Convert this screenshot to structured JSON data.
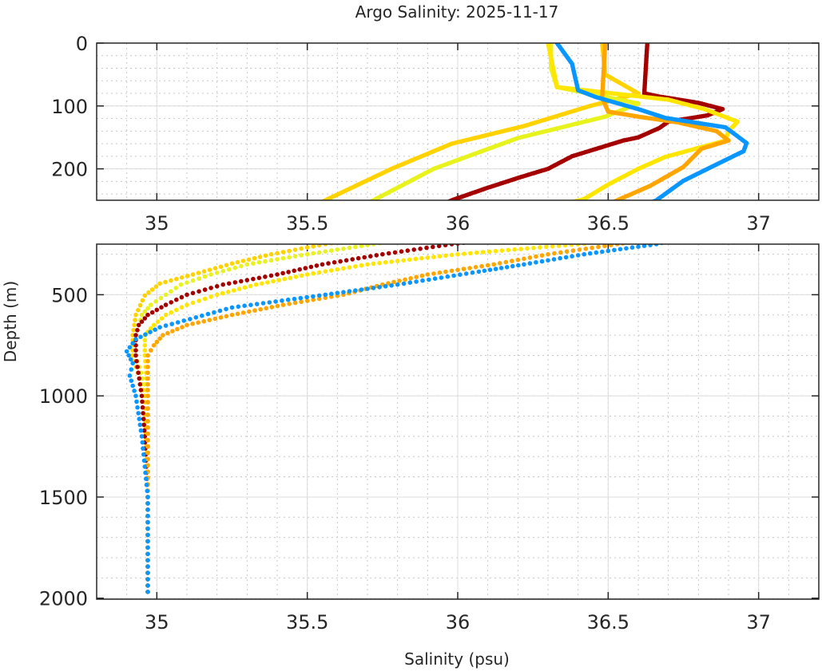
{
  "chart_data": {
    "type": "scatter",
    "title": "Argo Salinity: 2025-11-17",
    "xlabel": "Salinity (psu)",
    "ylabel": "Depth (m)",
    "grid": true,
    "minor_grid": true,
    "panels": [
      {
        "xlim": [
          34.8,
          37.2
        ],
        "ylim": [
          0,
          250
        ],
        "xticks": [
          "35",
          "35.5",
          "36",
          "36.5",
          "37"
        ],
        "xtick_values": [
          35,
          35.5,
          36,
          36.5,
          37
        ],
        "yticks": [
          "0",
          "100",
          "200"
        ],
        "ytick_values": [
          0,
          100,
          200
        ],
        "minor_x_step": 0.1,
        "minor_y_step": 20
      },
      {
        "xlim": [
          34.8,
          37.2
        ],
        "ylim": [
          250,
          2005
        ],
        "xticks": [
          "35",
          "35.5",
          "36",
          "36.5",
          "37"
        ],
        "xtick_values": [
          35,
          35.5,
          36,
          36.5,
          37
        ],
        "yticks": [
          "500",
          "1000",
          "1500",
          "2000"
        ],
        "ytick_values": [
          500,
          1000,
          1500,
          2000
        ],
        "minor_x_step": 0.1,
        "minor_y_step": 100
      }
    ],
    "series": [
      {
        "color": "#FFD200",
        "depth": [
          0,
          50,
          80,
          100,
          132,
          160,
          200,
          250,
          300,
          346,
          400,
          445,
          504,
          600,
          700,
          800,
          1000,
          1500,
          2000
        ],
        "salinity": [
          36.48,
          36.49,
          36.6,
          36.44,
          36.22,
          35.98,
          35.78,
          35.56,
          35.38,
          35.25,
          35.12,
          35.01,
          34.96,
          34.93,
          34.92,
          34.92,
          34.96,
          34.97,
          34.97
        ]
      },
      {
        "color": "#E8F21C",
        "depth": [
          0,
          40,
          70,
          96,
          117,
          151,
          200,
          250,
          300,
          350,
          400,
          450,
          500,
          550,
          600,
          700,
          800,
          1000,
          2000
        ],
        "salinity": [
          36.31,
          36.31,
          36.33,
          36.6,
          36.49,
          36.2,
          35.92,
          35.72,
          35.5,
          35.3,
          35.18,
          35.08,
          35.03,
          34.98,
          34.95,
          34.93,
          34.93,
          34.97,
          34.97
        ]
      },
      {
        "color": "#A50000",
        "depth": [
          0,
          80,
          85,
          95,
          105,
          115,
          125,
          135,
          150,
          155,
          180,
          200,
          213,
          230,
          250,
          300,
          350,
          400,
          450,
          500,
          550,
          600,
          650,
          700,
          800,
          1000,
          1200,
          1500,
          2000
        ],
        "salinity": [
          36.63,
          36.62,
          36.67,
          36.8,
          36.88,
          36.83,
          36.7,
          36.67,
          36.6,
          36.55,
          36.38,
          36.3,
          36.21,
          36.1,
          35.98,
          35.75,
          35.55,
          35.4,
          35.22,
          35.1,
          35.03,
          34.97,
          34.94,
          34.93,
          34.93,
          34.95,
          34.96,
          34.97,
          34.97
        ]
      },
      {
        "color": "#FFE600",
        "depth": [
          0,
          70,
          90,
          105,
          125,
          140,
          155,
          181,
          200,
          225,
          248,
          300,
          350,
          400,
          450,
          500,
          550,
          600,
          650,
          700,
          800,
          1000,
          2000
        ],
        "salinity": [
          36.3,
          36.33,
          36.7,
          36.82,
          36.93,
          36.9,
          36.89,
          36.69,
          36.6,
          36.5,
          36.42,
          36.0,
          35.7,
          35.5,
          35.33,
          35.2,
          35.1,
          35.03,
          34.99,
          34.96,
          34.96,
          34.97,
          34.97
        ]
      },
      {
        "color": "#FFA500",
        "depth": [
          0,
          87,
          109,
          117,
          126,
          140,
          155,
          168,
          197,
          227,
          250,
          300,
          350,
          400,
          450,
          500,
          550,
          600,
          650,
          700,
          750,
          800,
          1000,
          2000
        ],
        "salinity": [
          36.49,
          36.48,
          36.5,
          36.6,
          36.73,
          36.86,
          36.9,
          36.81,
          36.75,
          36.64,
          36.53,
          36.3,
          36.12,
          35.9,
          35.75,
          35.62,
          35.42,
          35.25,
          35.1,
          35.02,
          34.99,
          34.97,
          34.97,
          34.97
        ]
      },
      {
        "color": "#0A96FF",
        "depth": [
          0,
          33,
          75,
          86,
          105,
          119,
          134,
          159,
          172,
          193,
          219,
          250,
          300,
          350,
          386,
          450,
          504,
          563,
          661,
          720,
          780,
          839,
          900,
          1000,
          1200,
          1500,
          2000
        ],
        "salinity": [
          36.33,
          36.38,
          36.4,
          36.46,
          36.6,
          36.69,
          36.89,
          36.96,
          36.95,
          36.86,
          36.75,
          36.66,
          36.42,
          36.22,
          36.07,
          35.8,
          35.54,
          35.25,
          35.01,
          34.93,
          34.9,
          34.92,
          34.91,
          34.93,
          34.95,
          34.97,
          34.97
        ]
      }
    ]
  }
}
